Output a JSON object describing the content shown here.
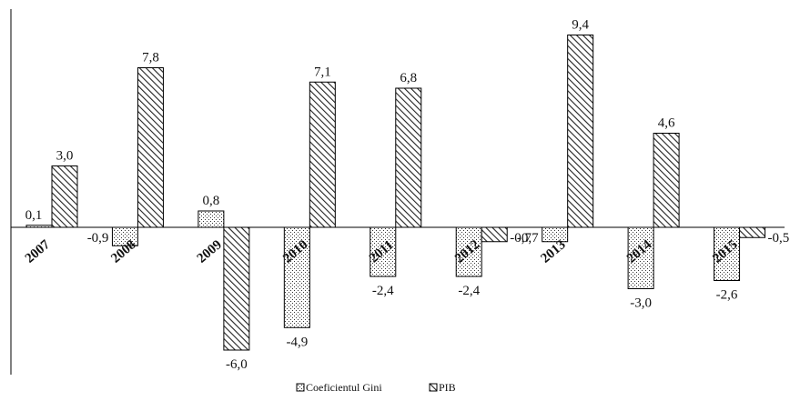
{
  "chart_data": {
    "type": "bar",
    "categories": [
      "2007",
      "2008",
      "2009",
      "2010",
      "2011",
      "2012",
      "2013",
      "2014",
      "2015"
    ],
    "series": [
      {
        "name": "Coeficientul Gini",
        "values": [
          0.1,
          -0.9,
          0.8,
          -4.9,
          -2.4,
          -2.4,
          -0.7,
          -3.0,
          -2.6
        ],
        "labels": [
          "0,1",
          "-0,9",
          "0,8",
          "-4,9",
          "-2,4",
          "-2,4",
          "-0,7",
          "-3,0",
          "-2,6"
        ]
      },
      {
        "name": "PIB",
        "values": [
          3.0,
          7.8,
          -6.0,
          7.1,
          6.8,
          -0.7,
          9.4,
          4.6,
          -0.5
        ],
        "labels": [
          "3,0",
          "7,8",
          "-6,0",
          "7,1",
          "6,8",
          "-0,7",
          "9,4",
          "4,6",
          "-0,5"
        ]
      }
    ],
    "title": "",
    "xlabel": "",
    "ylabel": "",
    "ylim": [
      -7,
      10
    ],
    "grid": false,
    "legend_position": "bottom-center",
    "colors": {
      "bar_outline": "#000000",
      "gini_dots": "#333333",
      "pib_hatch": "#222222",
      "background": "#ffffff"
    }
  }
}
